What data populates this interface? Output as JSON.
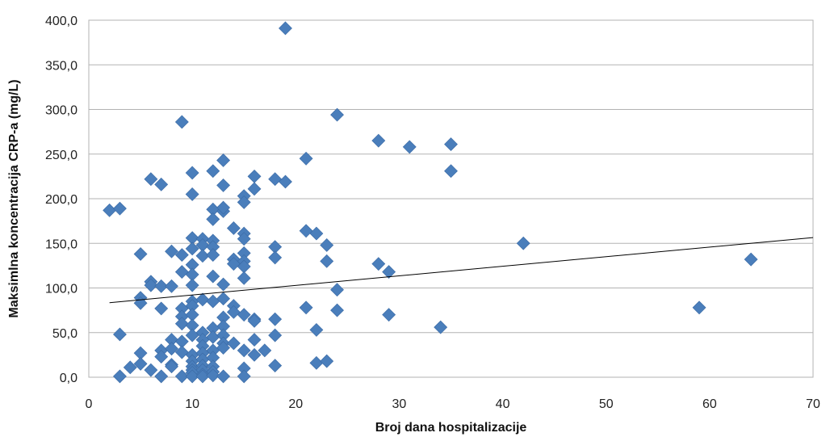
{
  "chart_data": {
    "type": "scatter",
    "title": "",
    "xlabel": "Broj dana hospitalizacije",
    "ylabel": "Maksimlna koncentracija CRP-a  (mg/L)",
    "xlim": [
      0,
      70
    ],
    "ylim": [
      0,
      400
    ],
    "x_ticks": [
      "0",
      "10",
      "20",
      "30",
      "40",
      "50",
      "60",
      "70"
    ],
    "y_ticks": [
      "0,0",
      "50,0",
      "100,0",
      "150,0",
      "200,0",
      "250,0",
      "300,0",
      "350,0",
      "400,0"
    ],
    "grid": "horizontal",
    "legend": "none",
    "marker": "diamond",
    "marker_color": "#4a7ebb",
    "trendline": {
      "type": "linear",
      "x": [
        2,
        70
      ],
      "y": [
        83.5,
        156.5
      ],
      "color": "#000000"
    },
    "points": [
      {
        "x": 19,
        "y": 391
      },
      {
        "x": 9,
        "y": 286
      },
      {
        "x": 24,
        "y": 294
      },
      {
        "x": 28,
        "y": 265
      },
      {
        "x": 31,
        "y": 258
      },
      {
        "x": 35,
        "y": 261
      },
      {
        "x": 13,
        "y": 243
      },
      {
        "x": 21,
        "y": 245
      },
      {
        "x": 35,
        "y": 231
      },
      {
        "x": 6,
        "y": 222
      },
      {
        "x": 7,
        "y": 216
      },
      {
        "x": 10,
        "y": 229
      },
      {
        "x": 12,
        "y": 231
      },
      {
        "x": 13,
        "y": 215
      },
      {
        "x": 16,
        "y": 225
      },
      {
        "x": 16,
        "y": 211
      },
      {
        "x": 18,
        "y": 222
      },
      {
        "x": 19,
        "y": 219
      },
      {
        "x": 2,
        "y": 187
      },
      {
        "x": 3,
        "y": 189
      },
      {
        "x": 10,
        "y": 205
      },
      {
        "x": 12,
        "y": 188
      },
      {
        "x": 12,
        "y": 177
      },
      {
        "x": 13,
        "y": 186
      },
      {
        "x": 13,
        "y": 190
      },
      {
        "x": 15,
        "y": 203
      },
      {
        "x": 15,
        "y": 196
      },
      {
        "x": 10,
        "y": 156
      },
      {
        "x": 11,
        "y": 155
      },
      {
        "x": 12,
        "y": 153
      },
      {
        "x": 14,
        "y": 167
      },
      {
        "x": 15,
        "y": 161
      },
      {
        "x": 15,
        "y": 155
      },
      {
        "x": 21,
        "y": 164
      },
      {
        "x": 22,
        "y": 161
      },
      {
        "x": 42,
        "y": 150
      },
      {
        "x": 5,
        "y": 138
      },
      {
        "x": 8,
        "y": 141
      },
      {
        "x": 9,
        "y": 137
      },
      {
        "x": 10,
        "y": 144
      },
      {
        "x": 11,
        "y": 148
      },
      {
        "x": 11,
        "y": 136
      },
      {
        "x": 12,
        "y": 146
      },
      {
        "x": 12,
        "y": 137
      },
      {
        "x": 14,
        "y": 132
      },
      {
        "x": 14,
        "y": 127
      },
      {
        "x": 15,
        "y": 139
      },
      {
        "x": 15,
        "y": 130
      },
      {
        "x": 15,
        "y": 124
      },
      {
        "x": 18,
        "y": 146
      },
      {
        "x": 18,
        "y": 134
      },
      {
        "x": 23,
        "y": 148
      },
      {
        "x": 23,
        "y": 130
      },
      {
        "x": 28,
        "y": 127
      },
      {
        "x": 29,
        "y": 118
      },
      {
        "x": 64,
        "y": 132
      },
      {
        "x": 6,
        "y": 107
      },
      {
        "x": 6,
        "y": 103
      },
      {
        "x": 7,
        "y": 102
      },
      {
        "x": 8,
        "y": 102
      },
      {
        "x": 9,
        "y": 118
      },
      {
        "x": 10,
        "y": 126
      },
      {
        "x": 10,
        "y": 115
      },
      {
        "x": 10,
        "y": 103
      },
      {
        "x": 12,
        "y": 113
      },
      {
        "x": 13,
        "y": 104
      },
      {
        "x": 15,
        "y": 111
      },
      {
        "x": 24,
        "y": 98
      },
      {
        "x": 5,
        "y": 89
      },
      {
        "x": 5,
        "y": 83
      },
      {
        "x": 7,
        "y": 77
      },
      {
        "x": 9,
        "y": 77
      },
      {
        "x": 9,
        "y": 68
      },
      {
        "x": 9,
        "y": 60
      },
      {
        "x": 10,
        "y": 85
      },
      {
        "x": 10,
        "y": 80
      },
      {
        "x": 10,
        "y": 70
      },
      {
        "x": 10,
        "y": 58
      },
      {
        "x": 11,
        "y": 87
      },
      {
        "x": 12,
        "y": 85
      },
      {
        "x": 13,
        "y": 88
      },
      {
        "x": 13,
        "y": 67
      },
      {
        "x": 13,
        "y": 57
      },
      {
        "x": 14,
        "y": 80
      },
      {
        "x": 14,
        "y": 73
      },
      {
        "x": 15,
        "y": 70
      },
      {
        "x": 16,
        "y": 65
      },
      {
        "x": 16,
        "y": 63
      },
      {
        "x": 18,
        "y": 65
      },
      {
        "x": 21,
        "y": 78
      },
      {
        "x": 24,
        "y": 75
      },
      {
        "x": 29,
        "y": 70
      },
      {
        "x": 59,
        "y": 78
      },
      {
        "x": 3,
        "y": 48
      },
      {
        "x": 8,
        "y": 42
      },
      {
        "x": 9,
        "y": 40
      },
      {
        "x": 10,
        "y": 47
      },
      {
        "x": 11,
        "y": 50
      },
      {
        "x": 11,
        "y": 42
      },
      {
        "x": 12,
        "y": 55
      },
      {
        "x": 12,
        "y": 45
      },
      {
        "x": 13,
        "y": 47
      },
      {
        "x": 13,
        "y": 38
      },
      {
        "x": 14,
        "y": 38
      },
      {
        "x": 16,
        "y": 42
      },
      {
        "x": 18,
        "y": 47
      },
      {
        "x": 22,
        "y": 53
      },
      {
        "x": 34,
        "y": 56
      },
      {
        "x": 5,
        "y": 27
      },
      {
        "x": 7,
        "y": 30
      },
      {
        "x": 7,
        "y": 23
      },
      {
        "x": 8,
        "y": 32
      },
      {
        "x": 9,
        "y": 28
      },
      {
        "x": 10,
        "y": 25
      },
      {
        "x": 10,
        "y": 18
      },
      {
        "x": 11,
        "y": 35
      },
      {
        "x": 11,
        "y": 27
      },
      {
        "x": 11,
        "y": 20
      },
      {
        "x": 12,
        "y": 30
      },
      {
        "x": 12,
        "y": 22
      },
      {
        "x": 13,
        "y": 33
      },
      {
        "x": 15,
        "y": 30
      },
      {
        "x": 16,
        "y": 25
      },
      {
        "x": 17,
        "y": 30
      },
      {
        "x": 4,
        "y": 11
      },
      {
        "x": 5,
        "y": 15
      },
      {
        "x": 6,
        "y": 8
      },
      {
        "x": 8,
        "y": 14
      },
      {
        "x": 8,
        "y": 12
      },
      {
        "x": 10,
        "y": 12
      },
      {
        "x": 10,
        "y": 8
      },
      {
        "x": 10,
        "y": 5
      },
      {
        "x": 11,
        "y": 13
      },
      {
        "x": 11,
        "y": 8
      },
      {
        "x": 11,
        "y": 3
      },
      {
        "x": 12,
        "y": 12
      },
      {
        "x": 12,
        "y": 6
      },
      {
        "x": 15,
        "y": 10
      },
      {
        "x": 18,
        "y": 13
      },
      {
        "x": 22,
        "y": 16
      },
      {
        "x": 23,
        "y": 18
      },
      {
        "x": 3,
        "y": 1
      },
      {
        "x": 7,
        "y": 1
      },
      {
        "x": 9,
        "y": 1
      },
      {
        "x": 10,
        "y": 1
      },
      {
        "x": 11,
        "y": 1
      },
      {
        "x": 12,
        "y": 2
      },
      {
        "x": 13,
        "y": 1
      },
      {
        "x": 15,
        "y": 1
      }
    ]
  }
}
